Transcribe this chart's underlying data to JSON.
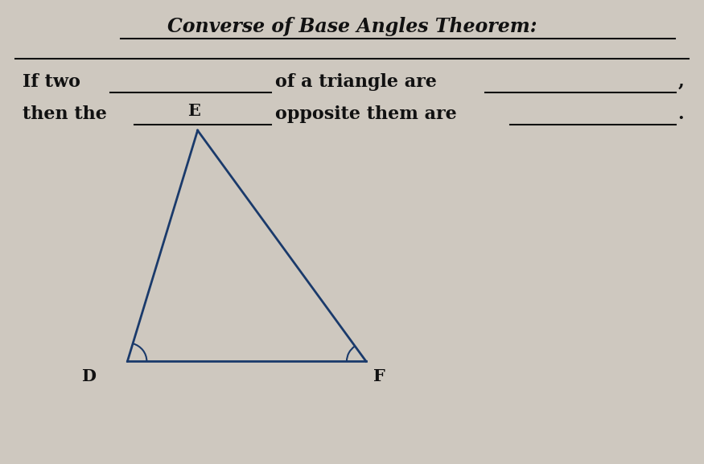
{
  "title": "Converse of Base Angles Theorem:",
  "triangle_vertices": {
    "D": [
      0.18,
      0.22
    ],
    "F": [
      0.52,
      0.22
    ],
    "E": [
      0.28,
      0.72
    ]
  },
  "vertex_labels": {
    "E": [
      0.275,
      0.745
    ],
    "D": [
      0.135,
      0.205
    ],
    "F": [
      0.53,
      0.205
    ]
  },
  "triangle_color": "#1a3a6b",
  "background_color": "#cec8bf",
  "text_color": "#111111",
  "title_fontsize": 17,
  "body_fontsize": 16,
  "vertex_fontsize": 15
}
